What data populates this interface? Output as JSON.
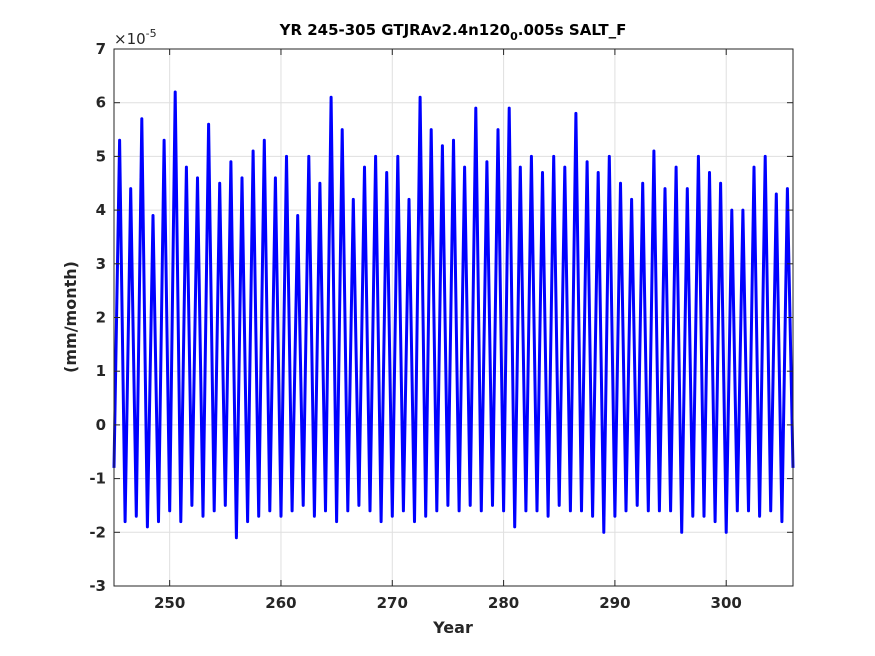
{
  "chart_data": {
    "type": "line",
    "title_main": "YR 245-305 GTJRAv2.4n120",
    "title_subscript": "0",
    "title_rest": ".005s SALT_F",
    "xlabel": "Year",
    "ylabel": "(mm/month)",
    "y_multiplier_base": "×10",
    "y_multiplier_exponent": "-5",
    "xlim": [
      245,
      306
    ],
    "ylim": [
      -3,
      7
    ],
    "xticks": [
      "250",
      "260",
      "270",
      "280",
      "290",
      "300"
    ],
    "yticks": [
      "-3",
      "-2",
      "-1",
      "0",
      "1",
      "2",
      "3",
      "4",
      "5",
      "6",
      "7"
    ],
    "grid": true,
    "line_color": "#0000ff",
    "series": [
      {
        "x": [
          245.0,
          245.5,
          246.0,
          246.5,
          247.0,
          247.5,
          248.0,
          248.5,
          249.0,
          249.5,
          250.0,
          250.5,
          251.0,
          251.5,
          252.0,
          252.5,
          253.0,
          253.5,
          254.0,
          254.5,
          255.0,
          255.5,
          256.0,
          256.5,
          257.0,
          257.5,
          258.0,
          258.5,
          259.0,
          259.5,
          260.0,
          260.5,
          261.0,
          261.5,
          262.0,
          262.5,
          263.0,
          263.5,
          264.0,
          264.5,
          265.0,
          265.5,
          266.0,
          266.5,
          267.0,
          267.5,
          268.0,
          268.5,
          269.0,
          269.5,
          270.0,
          270.5,
          271.0,
          271.5,
          272.0,
          272.5,
          273.0,
          273.5,
          274.0,
          274.5,
          275.0,
          275.5,
          276.0,
          276.5,
          277.0,
          277.5,
          278.0,
          278.5,
          279.0,
          279.5,
          280.0,
          280.5,
          281.0,
          281.5,
          282.0,
          282.5,
          283.0,
          283.5,
          284.0,
          284.5,
          285.0,
          285.5,
          286.0,
          286.5,
          287.0,
          287.5,
          288.0,
          288.5,
          289.0,
          289.5,
          290.0,
          290.5,
          291.0,
          291.5,
          292.0,
          292.5,
          293.0,
          293.5,
          294.0,
          294.5,
          295.0,
          295.5,
          296.0,
          296.5,
          297.0,
          297.5,
          298.0,
          298.5,
          299.0,
          299.5,
          300.0,
          300.5,
          301.0,
          301.5,
          302.0,
          302.5,
          303.0,
          303.5,
          304.0,
          304.5,
          305.0,
          305.5,
          306.0
        ],
        "y": [
          -0.8,
          5.3,
          -1.8,
          4.4,
          -1.7,
          5.7,
          -1.9,
          3.9,
          -1.8,
          5.3,
          -1.6,
          6.2,
          -1.8,
          4.8,
          -1.5,
          4.6,
          -1.7,
          5.6,
          -1.6,
          4.5,
          -1.5,
          4.9,
          -2.1,
          4.6,
          -1.8,
          5.1,
          -1.7,
          5.3,
          -1.6,
          4.6,
          -1.7,
          5.0,
          -1.6,
          3.9,
          -1.5,
          5.0,
          -1.7,
          4.5,
          -1.6,
          6.1,
          -1.8,
          5.5,
          -1.6,
          4.2,
          -1.5,
          4.8,
          -1.6,
          5.0,
          -1.8,
          4.7,
          -1.7,
          5.0,
          -1.6,
          4.2,
          -1.8,
          6.1,
          -1.7,
          5.5,
          -1.6,
          5.2,
          -1.5,
          5.3,
          -1.6,
          4.8,
          -1.5,
          5.9,
          -1.6,
          4.9,
          -1.5,
          5.5,
          -1.6,
          5.9,
          -1.9,
          4.8,
          -1.6,
          5.0,
          -1.6,
          4.7,
          -1.7,
          5.0,
          -1.5,
          4.8,
          -1.6,
          5.8,
          -1.6,
          4.9,
          -1.7,
          4.7,
          -2.0,
          5.0,
          -1.7,
          4.5,
          -1.6,
          4.2,
          -1.5,
          4.5,
          -1.6,
          5.1,
          -1.6,
          4.4,
          -1.6,
          4.8,
          -2.0,
          4.4,
          -1.7,
          5.0,
          -1.7,
          4.7,
          -1.8,
          4.5,
          -2.0,
          4.0,
          -1.6,
          4.0,
          -1.6,
          4.8,
          -1.7,
          5.0,
          -1.6,
          4.3,
          -1.8,
          4.4,
          -0.8
        ]
      }
    ]
  }
}
